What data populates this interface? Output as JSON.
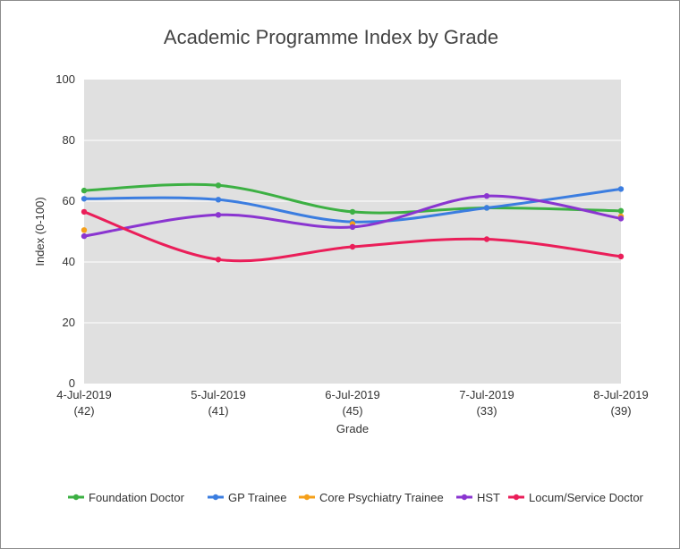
{
  "chart_data": {
    "type": "line",
    "title": "Academic Programme Index by Grade",
    "xlabel": "Grade",
    "ylabel": "Index (0-100)",
    "ylim": [
      0,
      100
    ],
    "yticks": [
      0,
      20,
      40,
      60,
      80,
      100
    ],
    "grid": true,
    "legend_position": "bottom",
    "categories": [
      {
        "date": "4-Jul-2019",
        "count": "(42)"
      },
      {
        "date": "5-Jul-2019",
        "count": "(41)"
      },
      {
        "date": "6-Jul-2019",
        "count": "(45)"
      },
      {
        "date": "7-Jul-2019",
        "count": "(33)"
      },
      {
        "date": "8-Jul-2019",
        "count": "(39)"
      }
    ],
    "series": [
      {
        "name": "Foundation Doctor",
        "color": "#3cb043",
        "values": [
          63.5,
          65.2,
          56.5,
          57.8,
          56.8
        ]
      },
      {
        "name": "GP Trainee",
        "color": "#3b7de0",
        "values": [
          60.8,
          60.5,
          53.2,
          57.8,
          64.0
        ]
      },
      {
        "name": "Core Psychiatry Trainee",
        "color": "#f5a01a",
        "values": [
          50.5,
          null,
          52.5,
          null,
          55.0
        ]
      },
      {
        "name": "HST",
        "color": "#8a35d0",
        "values": [
          48.5,
          55.5,
          51.5,
          61.7,
          54.3
        ]
      },
      {
        "name": "Locum/Service Doctor",
        "color": "#ea1e59",
        "values": [
          56.5,
          40.8,
          45.0,
          47.5,
          41.8
        ]
      }
    ]
  }
}
